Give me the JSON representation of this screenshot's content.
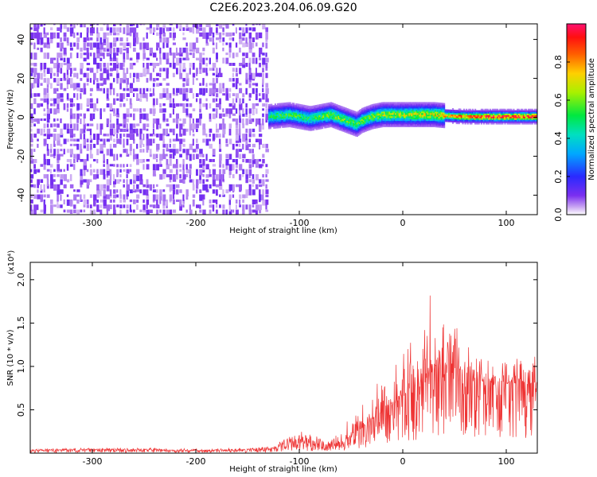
{
  "title": "C2E6.2023.204.06.09.G20",
  "chart_data": [
    {
      "type": "heatmap",
      "xlabel": "Height of straight line (km)",
      "ylabel": "Frequency (Hz)",
      "xlim": [
        -360,
        130
      ],
      "ylim": [
        -50,
        48
      ],
      "x_ticks": [
        -300,
        -200,
        -100,
        0,
        100
      ],
      "x_tick_labels": [
        "-300",
        "-200",
        "-100",
        "0",
        "100"
      ],
      "y_ticks": [
        -40,
        -20,
        0,
        20,
        40
      ],
      "y_tick_labels": [
        "-40",
        "-20",
        "0",
        "20",
        "40"
      ],
      "colorbar": {
        "label": "Normalized spectral amplitude",
        "range": [
          0,
          1
        ],
        "ticks": [
          0.0,
          0.2,
          0.4,
          0.6,
          0.8
        ],
        "tick_labels": [
          "0.0",
          "0.2",
          "0.4",
          "0.6",
          "0.8"
        ],
        "colormap": "rainbow (purple to red)"
      },
      "noise_region": {
        "x_range": [
          -360,
          -130
        ],
        "frequency_range": [
          -50,
          48
        ]
      },
      "ridge": {
        "x": [
          -130,
          -110,
          -90,
          -70,
          -55,
          -45,
          -40,
          -30,
          -20,
          -10,
          0,
          20,
          30,
          40,
          60,
          80,
          100,
          120,
          130
        ],
        "frequency": [
          0,
          1,
          -1,
          1,
          -2,
          -4,
          -2,
          0,
          1,
          1,
          1,
          1,
          1,
          0.5,
          0,
          0,
          0,
          0,
          0
        ],
        "peak_amplitude": [
          0.45,
          0.5,
          0.45,
          0.55,
          0.55,
          0.5,
          0.55,
          0.55,
          0.6,
          0.6,
          0.6,
          0.65,
          0.65,
          0.7,
          0.8,
          0.9,
          0.9,
          0.9,
          0.9
        ]
      }
    },
    {
      "type": "line",
      "xlabel": "Height of straight line (km)",
      "ylabel": "SNR (10 * v/v)",
      "y_multiplier": "(x10⁴)",
      "xlim": [
        -360,
        130
      ],
      "ylim": [
        0,
        0.2
      ],
      "x_ticks": [
        -300,
        -200,
        -100,
        0,
        100
      ],
      "x_tick_labels": [
        "-300",
        "-200",
        "-100",
        "0",
        "100"
      ],
      "y_ticks": [
        0.5,
        1.0,
        1.5,
        2.0
      ],
      "y_tick_labels": [
        "0.5",
        "1.0",
        "1.5",
        "2.0"
      ],
      "series": [
        {
          "color": "#ee3333",
          "x": [
            -360,
            -300,
            -250,
            -200,
            -150,
            -130,
            -120,
            -110,
            -100,
            -90,
            -80,
            -70,
            -60,
            -50,
            -40,
            -30,
            -20,
            -10,
            0,
            10,
            20,
            25,
            30,
            40,
            50,
            60,
            70,
            80,
            90,
            100,
            110,
            120,
            130
          ],
          "y_mean": [
            0.03,
            0.04,
            0.04,
            0.03,
            0.04,
            0.05,
            0.08,
            0.12,
            0.15,
            0.12,
            0.1,
            0.1,
            0.12,
            0.2,
            0.28,
            0.38,
            0.48,
            0.55,
            0.65,
            0.72,
            0.8,
            0.85,
            0.95,
            1.0,
            1.0,
            0.92,
            0.85,
            0.82,
            0.8,
            0.8,
            0.8,
            0.78,
            0.8
          ],
          "y_max": [
            0.05,
            0.06,
            0.06,
            0.05,
            0.06,
            0.09,
            0.14,
            0.22,
            0.28,
            0.22,
            0.18,
            0.2,
            0.25,
            0.45,
            0.6,
            0.75,
            0.95,
            1.0,
            1.2,
            1.4,
            1.6,
            2.1,
            1.5,
            1.5,
            1.55,
            1.4,
            1.15,
            1.1,
            1.05,
            1.05,
            1.1,
            1.2,
            1.25
          ]
        }
      ]
    }
  ]
}
